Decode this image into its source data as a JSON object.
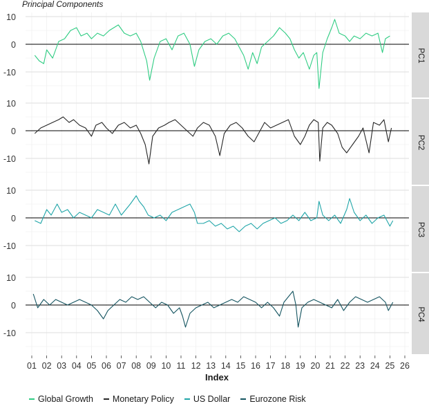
{
  "chart_data": {
    "type": "line",
    "title": "Principal Components",
    "xlabel": "Index",
    "x_ticks": [
      "01",
      "02",
      "03",
      "04",
      "05",
      "06",
      "07",
      "08",
      "09",
      "10",
      "11",
      "12",
      "13",
      "14",
      "15",
      "16",
      "17",
      "18",
      "19",
      "20",
      "21",
      "22",
      "23",
      "24",
      "25",
      "26"
    ],
    "xlim": [
      2001.0,
      2026.0
    ],
    "ylim": [
      -17,
      13
    ],
    "y_ticks": [
      "10",
      "0",
      "-10"
    ],
    "grid": true,
    "legend_position": "bottom",
    "facets": [
      {
        "label": "PC1",
        "series_name": "Global Growth",
        "color": "#2ecc82",
        "points": [
          [
            2001.2,
            -4
          ],
          [
            2001.5,
            -6
          ],
          [
            2001.8,
            -7
          ],
          [
            2002.0,
            -2
          ],
          [
            2002.4,
            -5
          ],
          [
            2002.8,
            1
          ],
          [
            2003.2,
            2
          ],
          [
            2003.6,
            5
          ],
          [
            2004.0,
            6
          ],
          [
            2004.3,
            3
          ],
          [
            2004.7,
            4
          ],
          [
            2005.0,
            2
          ],
          [
            2005.4,
            4
          ],
          [
            2005.8,
            3
          ],
          [
            2006.2,
            5
          ],
          [
            2006.5,
            6
          ],
          [
            2006.8,
            7
          ],
          [
            2007.2,
            4
          ],
          [
            2007.6,
            3
          ],
          [
            2008.0,
            4
          ],
          [
            2008.3,
            1
          ],
          [
            2008.7,
            -6
          ],
          [
            2008.9,
            -13
          ],
          [
            2009.2,
            -5
          ],
          [
            2009.6,
            1
          ],
          [
            2010.0,
            2
          ],
          [
            2010.4,
            -2
          ],
          [
            2010.8,
            3
          ],
          [
            2011.2,
            4
          ],
          [
            2011.6,
            0
          ],
          [
            2011.9,
            -8
          ],
          [
            2012.2,
            -2
          ],
          [
            2012.6,
            1
          ],
          [
            2013.0,
            2
          ],
          [
            2013.4,
            0
          ],
          [
            2013.8,
            3
          ],
          [
            2014.2,
            4
          ],
          [
            2014.6,
            2
          ],
          [
            2014.9,
            -1
          ],
          [
            2015.2,
            -4
          ],
          [
            2015.5,
            -9
          ],
          [
            2015.8,
            -3
          ],
          [
            2016.1,
            -7
          ],
          [
            2016.4,
            -1
          ],
          [
            2016.8,
            1
          ],
          [
            2017.2,
            3
          ],
          [
            2017.6,
            6
          ],
          [
            2018.0,
            4
          ],
          [
            2018.3,
            2
          ],
          [
            2018.6,
            -2
          ],
          [
            2018.9,
            -5
          ],
          [
            2019.2,
            -3
          ],
          [
            2019.6,
            -9
          ],
          [
            2019.9,
            -4
          ],
          [
            2020.1,
            -3
          ],
          [
            2020.25,
            -16
          ],
          [
            2020.5,
            -3
          ],
          [
            2020.8,
            2
          ],
          [
            2021.1,
            6
          ],
          [
            2021.3,
            9
          ],
          [
            2021.6,
            4
          ],
          [
            2022.0,
            3
          ],
          [
            2022.3,
            1
          ],
          [
            2022.6,
            3
          ],
          [
            2023.0,
            2
          ],
          [
            2023.4,
            4
          ],
          [
            2023.8,
            3
          ],
          [
            2024.2,
            4
          ],
          [
            2024.5,
            -3
          ],
          [
            2024.7,
            2
          ],
          [
            2025.0,
            3
          ]
        ]
      },
      {
        "label": "PC2",
        "series_name": "Monetary Policy",
        "color": "#262626",
        "points": [
          [
            2001.2,
            -1
          ],
          [
            2001.6,
            1
          ],
          [
            2002.0,
            2
          ],
          [
            2002.4,
            3
          ],
          [
            2002.8,
            4
          ],
          [
            2003.1,
            5
          ],
          [
            2003.5,
            3
          ],
          [
            2003.8,
            4
          ],
          [
            2004.2,
            2
          ],
          [
            2004.6,
            1
          ],
          [
            2005.0,
            -2
          ],
          [
            2005.3,
            2
          ],
          [
            2005.7,
            3
          ],
          [
            2006.0,
            1
          ],
          [
            2006.4,
            -1
          ],
          [
            2006.8,
            2
          ],
          [
            2007.2,
            3
          ],
          [
            2007.6,
            1
          ],
          [
            2008.0,
            2
          ],
          [
            2008.3,
            -1
          ],
          [
            2008.6,
            -5
          ],
          [
            2008.85,
            -12
          ],
          [
            2009.1,
            -2
          ],
          [
            2009.5,
            1
          ],
          [
            2009.9,
            2
          ],
          [
            2010.2,
            3
          ],
          [
            2010.6,
            4
          ],
          [
            2011.0,
            2
          ],
          [
            2011.4,
            0
          ],
          [
            2011.8,
            -2
          ],
          [
            2012.1,
            1
          ],
          [
            2012.5,
            3
          ],
          [
            2012.9,
            2
          ],
          [
            2013.3,
            -2
          ],
          [
            2013.6,
            -9
          ],
          [
            2013.9,
            -1
          ],
          [
            2014.3,
            2
          ],
          [
            2014.7,
            3
          ],
          [
            2015.1,
            1
          ],
          [
            2015.5,
            -2
          ],
          [
            2015.9,
            -4
          ],
          [
            2016.2,
            -1
          ],
          [
            2016.6,
            3
          ],
          [
            2017.0,
            1
          ],
          [
            2017.4,
            2
          ],
          [
            2017.8,
            3
          ],
          [
            2018.2,
            4
          ],
          [
            2018.6,
            -2
          ],
          [
            2019.0,
            -5
          ],
          [
            2019.3,
            -2
          ],
          [
            2019.6,
            2
          ],
          [
            2019.9,
            4
          ],
          [
            2020.2,
            3
          ],
          [
            2020.3,
            -11
          ],
          [
            2020.5,
            1
          ],
          [
            2020.8,
            3
          ],
          [
            2021.1,
            2
          ],
          [
            2021.5,
            -1
          ],
          [
            2021.8,
            -6
          ],
          [
            2022.1,
            -8
          ],
          [
            2022.5,
            -5
          ],
          [
            2022.9,
            -2
          ],
          [
            2023.2,
            1
          ],
          [
            2023.6,
            -8
          ],
          [
            2023.9,
            3
          ],
          [
            2024.3,
            2
          ],
          [
            2024.6,
            4
          ],
          [
            2024.9,
            -4
          ],
          [
            2025.1,
            1
          ]
        ]
      },
      {
        "label": "PC3",
        "series_name": "US Dollar",
        "color": "#1fa5a8",
        "points": [
          [
            2001.2,
            -1
          ],
          [
            2001.6,
            -2
          ],
          [
            2002.0,
            3
          ],
          [
            2002.3,
            1
          ],
          [
            2002.7,
            5
          ],
          [
            2003.0,
            2
          ],
          [
            2003.4,
            3
          ],
          [
            2003.8,
            0
          ],
          [
            2004.2,
            2
          ],
          [
            2004.6,
            1
          ],
          [
            2005.0,
            0
          ],
          [
            2005.4,
            3
          ],
          [
            2005.8,
            2
          ],
          [
            2006.2,
            1
          ],
          [
            2006.6,
            5
          ],
          [
            2007.0,
            1
          ],
          [
            2007.3,
            3
          ],
          [
            2007.6,
            5
          ],
          [
            2008.0,
            8
          ],
          [
            2008.2,
            6
          ],
          [
            2008.5,
            4
          ],
          [
            2008.8,
            1
          ],
          [
            2009.2,
            0
          ],
          [
            2009.6,
            1
          ],
          [
            2010.0,
            -1
          ],
          [
            2010.4,
            2
          ],
          [
            2010.8,
            3
          ],
          [
            2011.2,
            4
          ],
          [
            2011.6,
            5
          ],
          [
            2011.9,
            2
          ],
          [
            2012.1,
            -2
          ],
          [
            2012.5,
            -2
          ],
          [
            2012.9,
            -1
          ],
          [
            2013.3,
            -3
          ],
          [
            2013.7,
            -2
          ],
          [
            2014.1,
            -4
          ],
          [
            2014.5,
            -3
          ],
          [
            2014.9,
            -5
          ],
          [
            2015.3,
            -3
          ],
          [
            2015.7,
            -2
          ],
          [
            2016.1,
            -4
          ],
          [
            2016.5,
            -2
          ],
          [
            2016.9,
            -1
          ],
          [
            2017.3,
            0
          ],
          [
            2017.7,
            -2
          ],
          [
            2018.1,
            -1
          ],
          [
            2018.5,
            1
          ],
          [
            2018.9,
            -1
          ],
          [
            2019.3,
            2
          ],
          [
            2019.7,
            -1
          ],
          [
            2020.1,
            0
          ],
          [
            2020.25,
            6
          ],
          [
            2020.5,
            1
          ],
          [
            2020.9,
            -1
          ],
          [
            2021.3,
            1
          ],
          [
            2021.7,
            -2
          ],
          [
            2022.1,
            3
          ],
          [
            2022.3,
            7
          ],
          [
            2022.6,
            2
          ],
          [
            2023.0,
            -1
          ],
          [
            2023.4,
            1
          ],
          [
            2023.8,
            -2
          ],
          [
            2024.2,
            0
          ],
          [
            2024.6,
            1
          ],
          [
            2025.0,
            -3
          ],
          [
            2025.2,
            -1
          ]
        ]
      },
      {
        "label": "PC4",
        "series_name": "Eurozone Risk",
        "color": "#13535f",
        "points": [
          [
            2001.1,
            4
          ],
          [
            2001.4,
            -1
          ],
          [
            2001.8,
            2
          ],
          [
            2002.2,
            0
          ],
          [
            2002.6,
            2
          ],
          [
            2003.0,
            1
          ],
          [
            2003.4,
            0
          ],
          [
            2003.8,
            1
          ],
          [
            2004.2,
            2
          ],
          [
            2004.6,
            1
          ],
          [
            2005.0,
            0
          ],
          [
            2005.4,
            -2
          ],
          [
            2005.8,
            -5
          ],
          [
            2006.1,
            -2
          ],
          [
            2006.5,
            0
          ],
          [
            2006.9,
            2
          ],
          [
            2007.3,
            1
          ],
          [
            2007.7,
            3
          ],
          [
            2008.1,
            2
          ],
          [
            2008.5,
            3
          ],
          [
            2008.9,
            1
          ],
          [
            2009.3,
            -1
          ],
          [
            2009.7,
            1
          ],
          [
            2010.1,
            0
          ],
          [
            2010.5,
            -3
          ],
          [
            2010.9,
            -1
          ],
          [
            2011.1,
            -4
          ],
          [
            2011.3,
            -8
          ],
          [
            2011.6,
            -3
          ],
          [
            2012.0,
            -1
          ],
          [
            2012.4,
            0
          ],
          [
            2012.8,
            1
          ],
          [
            2013.2,
            -1
          ],
          [
            2013.6,
            0
          ],
          [
            2014.0,
            1
          ],
          [
            2014.4,
            2
          ],
          [
            2014.8,
            1
          ],
          [
            2015.2,
            3
          ],
          [
            2015.6,
            2
          ],
          [
            2016.0,
            1
          ],
          [
            2016.4,
            -1
          ],
          [
            2016.8,
            1
          ],
          [
            2017.2,
            -1
          ],
          [
            2017.6,
            -4
          ],
          [
            2017.9,
            1
          ],
          [
            2018.2,
            3
          ],
          [
            2018.5,
            5
          ],
          [
            2018.7,
            0
          ],
          [
            2018.85,
            -8
          ],
          [
            2019.1,
            -1
          ],
          [
            2019.5,
            1
          ],
          [
            2019.9,
            2
          ],
          [
            2020.3,
            1
          ],
          [
            2020.7,
            0
          ],
          [
            2021.1,
            -1
          ],
          [
            2021.5,
            2
          ],
          [
            2021.9,
            -2
          ],
          [
            2022.3,
            1
          ],
          [
            2022.7,
            3
          ],
          [
            2023.1,
            2
          ],
          [
            2023.5,
            1
          ],
          [
            2023.9,
            2
          ],
          [
            2024.3,
            3
          ],
          [
            2024.7,
            1
          ],
          [
            2024.9,
            -2
          ],
          [
            2025.2,
            1
          ]
        ]
      }
    ],
    "legend": [
      {
        "name": "Global Growth",
        "color": "#2ecc82"
      },
      {
        "name": "Monetary Policy",
        "color": "#262626"
      },
      {
        "name": "US Dollar",
        "color": "#1fa5a8"
      },
      {
        "name": "Eurozone Risk",
        "color": "#13535f"
      }
    ]
  }
}
